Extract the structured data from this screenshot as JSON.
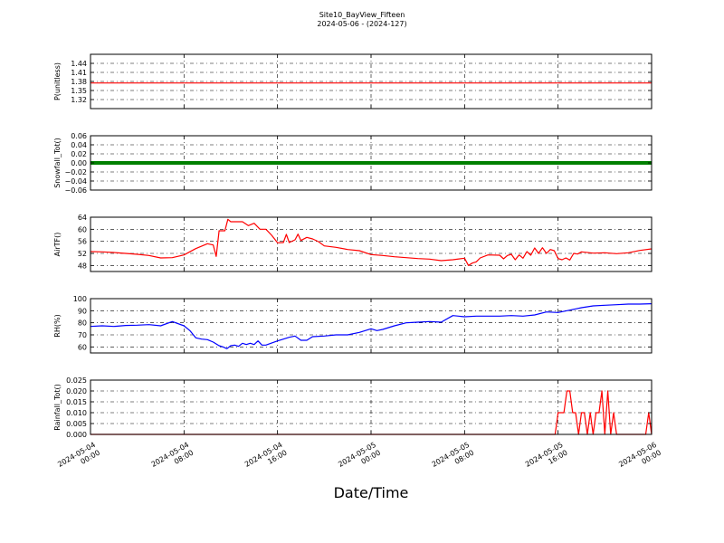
{
  "figure": {
    "title": "Site10_BayView_Fifteen",
    "subtitle": "2024-05-06 - (2024-127)",
    "xlabel": "Date/Time"
  },
  "chart_data": [
    {
      "type": "line",
      "ylabel": "P(unitless)",
      "ylim": [
        1.29,
        1.47
      ],
      "yticks": [
        1.32,
        1.35,
        1.38,
        1.41,
        1.44
      ],
      "yticklabels": [
        "1.32",
        "1.35",
        "1.38",
        "1.41",
        "1.44"
      ],
      "grid": true,
      "series": [
        {
          "color": "#ff0000",
          "points": [
            [
              "2024-05-04 00:00",
              1.375
            ],
            [
              "2024-05-06 00:00",
              1.375
            ]
          ]
        }
      ]
    },
    {
      "type": "line",
      "ylabel": "Snowfall_Tot()",
      "ylim": [
        -0.06,
        0.06
      ],
      "yticks": [
        -0.06,
        -0.04,
        -0.02,
        0.0,
        0.02,
        0.04,
        0.06
      ],
      "yticklabels": [
        "−0.06",
        "−0.04",
        "−0.02",
        "0.00",
        "0.02",
        "0.04",
        "0.06"
      ],
      "grid": true,
      "series": [
        {
          "color": "#008000",
          "marker": "dot",
          "width": 4,
          "points": [
            [
              "2024-05-04 00:00",
              0.0
            ],
            [
              "2024-05-06 00:00",
              0.0
            ]
          ]
        }
      ]
    },
    {
      "type": "line",
      "ylabel": "AirTF()",
      "ylim": [
        46,
        64
      ],
      "yticks": [
        48,
        52,
        56,
        60,
        64
      ],
      "yticklabels": [
        "48",
        "52",
        "56",
        "60",
        "64"
      ],
      "grid": true,
      "series": [
        {
          "color": "#ff0000",
          "points": [
            [
              "2024-05-04 00:00",
              52.6
            ],
            [
              "2024-05-04 01:00",
              52.5
            ],
            [
              "2024-05-04 02:00",
              52.3
            ],
            [
              "2024-05-04 03:00",
              52.0
            ],
            [
              "2024-05-04 04:00",
              51.7
            ],
            [
              "2024-05-04 05:00",
              51.3
            ],
            [
              "2024-05-04 06:00",
              50.5
            ],
            [
              "2024-05-04 07:00",
              50.6
            ],
            [
              "2024-05-04 08:00",
              51.5
            ],
            [
              "2024-05-04 09:00",
              53.6
            ],
            [
              "2024-05-04 10:00",
              55.2
            ],
            [
              "2024-05-04 10:30",
              54.8
            ],
            [
              "2024-05-04 10:45",
              51.0
            ],
            [
              "2024-05-04 11:00",
              59.5
            ],
            [
              "2024-05-04 11:30",
              59.5
            ],
            [
              "2024-05-04 11:45",
              63.3
            ],
            [
              "2024-05-04 12:00",
              62.5
            ],
            [
              "2024-05-04 13:00",
              62.5
            ],
            [
              "2024-05-04 13:30",
              61.2
            ],
            [
              "2024-05-04 14:00",
              62.0
            ],
            [
              "2024-05-04 14:30",
              60.0
            ],
            [
              "2024-05-04 15:00",
              60.0
            ],
            [
              "2024-05-04 15:30",
              58.0
            ],
            [
              "2024-05-04 16:00",
              55.5
            ],
            [
              "2024-05-04 16:30",
              55.6
            ],
            [
              "2024-05-04 16:45",
              58.3
            ],
            [
              "2024-05-04 17:00",
              55.6
            ],
            [
              "2024-05-04 17:30",
              56.5
            ],
            [
              "2024-05-04 17:45",
              58.4
            ],
            [
              "2024-05-04 18:00",
              56.3
            ],
            [
              "2024-05-04 18:30",
              57.3
            ],
            [
              "2024-05-04 19:00",
              56.8
            ],
            [
              "2024-05-04 19:30",
              55.9
            ],
            [
              "2024-05-04 20:00",
              54.5
            ],
            [
              "2024-05-04 21:00",
              54.0
            ],
            [
              "2024-05-04 22:00",
              53.3
            ],
            [
              "2024-05-04 23:00",
              52.9
            ],
            [
              "2024-05-05 00:00",
              51.6
            ],
            [
              "2024-05-05 01:00",
              51.3
            ],
            [
              "2024-05-05 02:00",
              50.9
            ],
            [
              "2024-05-05 03:00",
              50.6
            ],
            [
              "2024-05-05 04:00",
              50.3
            ],
            [
              "2024-05-05 05:00",
              50.1
            ],
            [
              "2024-05-05 06:00",
              49.6
            ],
            [
              "2024-05-05 07:00",
              49.9
            ],
            [
              "2024-05-05 08:00",
              50.4
            ],
            [
              "2024-05-05 08:20",
              48.0
            ],
            [
              "2024-05-05 08:40",
              48.8
            ],
            [
              "2024-05-05 09:00",
              49.2
            ],
            [
              "2024-05-05 09:20",
              50.5
            ],
            [
              "2024-05-05 10:00",
              51.5
            ],
            [
              "2024-05-05 11:00",
              51.4
            ],
            [
              "2024-05-05 11:20",
              50.2
            ],
            [
              "2024-05-05 11:40",
              51.3
            ],
            [
              "2024-05-05 12:00",
              51.7
            ],
            [
              "2024-05-05 12:20",
              49.9
            ],
            [
              "2024-05-05 12:40",
              51.5
            ],
            [
              "2024-05-05 13:00",
              50.4
            ],
            [
              "2024-05-05 13:20",
              52.6
            ],
            [
              "2024-05-05 13:40",
              51.4
            ],
            [
              "2024-05-05 14:00",
              53.8
            ],
            [
              "2024-05-05 14:20",
              52.0
            ],
            [
              "2024-05-05 14:40",
              53.9
            ],
            [
              "2024-05-05 15:00",
              52.0
            ],
            [
              "2024-05-05 15:20",
              53.3
            ],
            [
              "2024-05-05 15:40",
              52.9
            ],
            [
              "2024-05-05 16:00",
              50.3
            ],
            [
              "2024-05-05 16:20",
              49.9
            ],
            [
              "2024-05-05 16:40",
              50.5
            ],
            [
              "2024-05-05 17:00",
              49.8
            ],
            [
              "2024-05-05 17:20",
              52.0
            ],
            [
              "2024-05-05 17:40",
              51.8
            ],
            [
              "2024-05-05 18:00",
              52.5
            ],
            [
              "2024-05-05 19:00",
              52.1
            ],
            [
              "2024-05-05 20:00",
              52.2
            ],
            [
              "2024-05-05 21:00",
              51.9
            ],
            [
              "2024-05-05 22:00",
              52.2
            ],
            [
              "2024-05-05 23:00",
              53.0
            ],
            [
              "2024-05-06 00:00",
              53.5
            ]
          ]
        }
      ]
    },
    {
      "type": "line",
      "ylabel": "RH(%)",
      "ylim": [
        55,
        100
      ],
      "yticks": [
        60,
        70,
        80,
        90,
        100
      ],
      "yticklabels": [
        "60",
        "70",
        "80",
        "90",
        "100"
      ],
      "grid": true,
      "series": [
        {
          "color": "#0000ff",
          "points": [
            [
              "2024-05-04 00:00",
              77.0
            ],
            [
              "2024-05-04 01:00",
              77.5
            ],
            [
              "2024-05-04 02:00",
              77.0
            ],
            [
              "2024-05-04 03:00",
              77.8
            ],
            [
              "2024-05-04 04:00",
              78.0
            ],
            [
              "2024-05-04 05:00",
              78.5
            ],
            [
              "2024-05-04 06:00",
              77.5
            ],
            [
              "2024-05-04 07:00",
              81.0
            ],
            [
              "2024-05-04 08:00",
              77.5
            ],
            [
              "2024-05-04 08:30",
              73.5
            ],
            [
              "2024-05-04 09:00",
              67.5
            ],
            [
              "2024-05-04 09:30",
              66.5
            ],
            [
              "2024-05-04 10:00",
              66.0
            ],
            [
              "2024-05-04 10:30",
              64.0
            ],
            [
              "2024-05-04 11:00",
              61.0
            ],
            [
              "2024-05-04 11:20",
              60.0
            ],
            [
              "2024-05-04 11:40",
              58.5
            ],
            [
              "2024-05-04 12:00",
              61.0
            ],
            [
              "2024-05-04 12:20",
              61.5
            ],
            [
              "2024-05-04 12:40",
              60.5
            ],
            [
              "2024-05-04 13:00",
              63.0
            ],
            [
              "2024-05-04 13:20",
              62.0
            ],
            [
              "2024-05-04 13:40",
              63.0
            ],
            [
              "2024-05-04 14:00",
              62.0
            ],
            [
              "2024-05-04 14:20",
              65.0
            ],
            [
              "2024-05-04 14:40",
              61.5
            ],
            [
              "2024-05-04 15:00",
              61.5
            ],
            [
              "2024-05-04 16:00",
              65.0
            ],
            [
              "2024-05-04 17:00",
              68.0
            ],
            [
              "2024-05-04 17:30",
              69.0
            ],
            [
              "2024-05-04 18:00",
              65.5
            ],
            [
              "2024-05-04 18:30",
              65.5
            ],
            [
              "2024-05-04 19:00",
              68.5
            ],
            [
              "2024-05-04 20:00",
              69.0
            ],
            [
              "2024-05-04 21:00",
              70.0
            ],
            [
              "2024-05-04 22:00",
              70.0
            ],
            [
              "2024-05-04 23:00",
              72.0
            ],
            [
              "2024-05-05 00:00",
              75.0
            ],
            [
              "2024-05-05 00:30",
              73.5
            ],
            [
              "2024-05-05 01:00",
              74.5
            ],
            [
              "2024-05-05 02:00",
              77.5
            ],
            [
              "2024-05-05 03:00",
              80.0
            ],
            [
              "2024-05-05 04:00",
              80.5
            ],
            [
              "2024-05-05 05:00",
              81.0
            ],
            [
              "2024-05-05 06:00",
              80.5
            ],
            [
              "2024-05-05 07:00",
              86.0
            ],
            [
              "2024-05-05 08:00",
              85.0
            ],
            [
              "2024-05-05 09:00",
              85.5
            ],
            [
              "2024-05-05 10:00",
              85.5
            ],
            [
              "2024-05-05 11:00",
              85.5
            ],
            [
              "2024-05-05 12:00",
              86.0
            ],
            [
              "2024-05-05 13:00",
              85.5
            ],
            [
              "2024-05-05 14:00",
              86.5
            ],
            [
              "2024-05-05 15:00",
              89.0
            ],
            [
              "2024-05-05 16:00",
              88.5
            ],
            [
              "2024-05-05 17:00",
              90.5
            ],
            [
              "2024-05-05 18:00",
              92.5
            ],
            [
              "2024-05-05 19:00",
              94.0
            ],
            [
              "2024-05-05 20:00",
              94.5
            ],
            [
              "2024-05-05 21:00",
              95.0
            ],
            [
              "2024-05-05 22:00",
              95.5
            ],
            [
              "2024-05-05 23:00",
              95.5
            ],
            [
              "2024-05-06 00:00",
              95.8
            ]
          ]
        }
      ]
    },
    {
      "type": "line",
      "ylabel": "Rainfall_Tot()",
      "ylim": [
        0.0,
        0.025
      ],
      "yticks": [
        0.0,
        0.005,
        0.01,
        0.015,
        0.02,
        0.025
      ],
      "yticklabels": [
        "0.000",
        "0.005",
        "0.010",
        "0.015",
        "0.020",
        "0.025"
      ],
      "grid": true,
      "series": [
        {
          "color": "#ff0000",
          "points": [
            [
              "2024-05-04 00:00",
              0.0
            ],
            [
              "2024-05-05 15:45",
              0.0
            ],
            [
              "2024-05-05 16:00",
              0.01
            ],
            [
              "2024-05-05 16:30",
              0.01
            ],
            [
              "2024-05-05 16:45",
              0.02
            ],
            [
              "2024-05-05 17:00",
              0.02
            ],
            [
              "2024-05-05 17:15",
              0.01
            ],
            [
              "2024-05-05 17:30",
              0.01
            ],
            [
              "2024-05-05 17:45",
              0.0
            ],
            [
              "2024-05-05 18:00",
              0.01
            ],
            [
              "2024-05-05 18:15",
              0.01
            ],
            [
              "2024-05-05 18:30",
              0.0
            ],
            [
              "2024-05-05 18:45",
              0.01
            ],
            [
              "2024-05-05 19:00",
              0.0
            ],
            [
              "2024-05-05 19:15",
              0.01
            ],
            [
              "2024-05-05 19:30",
              0.01
            ],
            [
              "2024-05-05 19:45",
              0.02
            ],
            [
              "2024-05-05 20:00",
              0.0
            ],
            [
              "2024-05-05 20:15",
              0.02
            ],
            [
              "2024-05-05 20:30",
              0.0
            ],
            [
              "2024-05-05 20:45",
              0.01
            ],
            [
              "2024-05-05 21:00",
              0.0
            ],
            [
              "2024-05-05 23:30",
              0.0
            ],
            [
              "2024-05-05 23:45",
              0.01
            ],
            [
              "2024-05-06 00:00",
              0.0
            ]
          ]
        }
      ]
    }
  ],
  "x_axis": {
    "range": [
      "2024-05-04 00:00",
      "2024-05-06 00:00"
    ],
    "ticks": [
      {
        "date": "2024-05-04",
        "time": "00:00",
        "at": "2024-05-04 00:00"
      },
      {
        "date": "2024-05-04",
        "time": "08:00",
        "at": "2024-05-04 08:00"
      },
      {
        "date": "2024-05-04",
        "time": "16:00",
        "at": "2024-05-04 16:00"
      },
      {
        "date": "2024-05-05",
        "time": "00:00",
        "at": "2024-05-05 00:00"
      },
      {
        "date": "2024-05-05",
        "time": "08:00",
        "at": "2024-05-05 08:00"
      },
      {
        "date": "2024-05-05",
        "time": "16:00",
        "at": "2024-05-05 16:00"
      },
      {
        "date": "2024-05-06",
        "time": "00:00",
        "at": "2024-05-06 00:00"
      }
    ]
  }
}
